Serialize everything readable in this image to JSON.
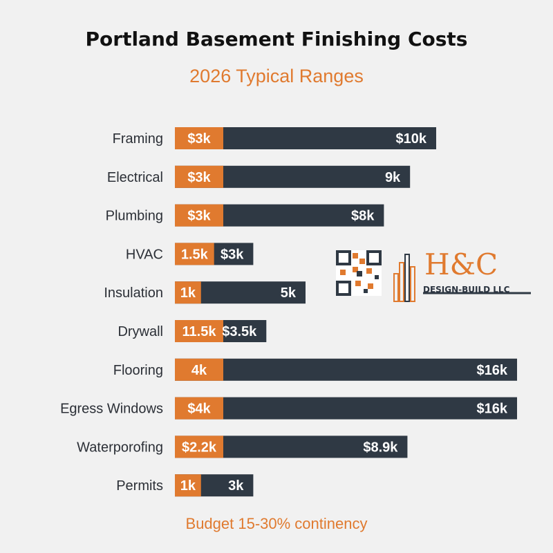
{
  "title": "Portland Basement Finishing Costs",
  "subtitle": "2026 Typical Ranges",
  "footnote": "Budget 15-30% continency",
  "logo": {
    "text": "H&C",
    "subtext": "DESIGN-BUILD LLC"
  },
  "colors": {
    "low": "#e07a2f",
    "high": "#2f3944",
    "accent": "#e07a2f"
  },
  "chart_data": {
    "type": "bar",
    "orientation": "horizontal",
    "stacked": true,
    "categories": [
      "Framing",
      "Electrical",
      "Plumbing",
      "HVAC",
      "Insulation",
      "Drywall",
      "Flooring",
      "Egress Windows",
      "Waterporofing",
      "Permits"
    ],
    "series": [
      {
        "values": [
          3,
          3,
          3,
          1.5,
          1,
          11.5,
          4,
          4,
          2.2,
          1
        ],
        "labels": [
          "$3k",
          "$3k",
          "$3k",
          "1.5k",
          "1k",
          "11.5k",
          "4k",
          "$4k",
          "$2.2k",
          "1k"
        ]
      },
      {
        "values": [
          10,
          9,
          8,
          3,
          5,
          3.5,
          16,
          16,
          8.9,
          3
        ],
        "labels": [
          "$10k",
          "9k",
          "$8k",
          "$3k",
          "5k",
          "$3.5k",
          "$16k",
          "$16k",
          "$8.9k",
          "3k"
        ]
      }
    ]
  }
}
